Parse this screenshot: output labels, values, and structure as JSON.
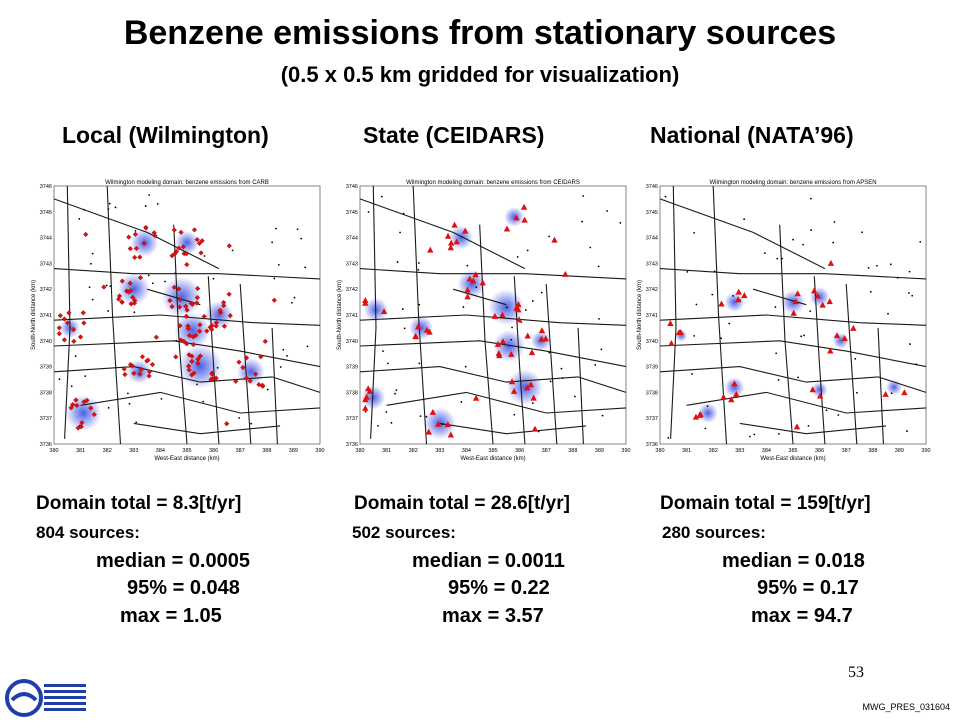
{
  "slide": {
    "title": "Benzene emissions from stationary sources",
    "subtitle": "(0.5 x 0.5 km gridded for visualization)",
    "page_number": "53",
    "reference": "MWG_PRES_031604",
    "logo_icon": "agency-logo-icon"
  },
  "columns": [
    {
      "heading": "Local (Wilmington)",
      "map_title": "Wilmington modeling domain: benzene emissions from CARB",
      "marker": "diamond",
      "domain_total": "Domain total = 8.3[t/yr]",
      "sources": "804 sources:",
      "median": "median =  0.0005",
      "p95": "95% =  0.048",
      "max": "max  =  1.05"
    },
    {
      "heading": "State (CEIDARS)",
      "map_title": "Wilmington modeling domain: benzene emissions from CEIDARS",
      "marker": "triangle",
      "domain_total": "Domain total = 28.6[t/yr]",
      "sources": "502 sources:",
      "median": "median = 0.0011",
      "p95": "95% = 0.22",
      "max": "max  = 3.57"
    },
    {
      "heading": "National (NATA’96)",
      "map_title": "Wilmington modeling domain: benzene emissions from APSEN",
      "marker": "triangle",
      "domain_total": "Domain total = 159[t/yr]",
      "sources": "280 sources:",
      "median": "median = 0.018",
      "p95": "95% = 0.17",
      "max": "max  = 94.7"
    }
  ],
  "map_axes": {
    "xlabel": "West-East distance (km)",
    "ylabel": "South-North distance (km)",
    "x_ticks": [
      "380",
      "381",
      "382",
      "383",
      "384",
      "385",
      "386",
      "387",
      "388",
      "389",
      "390"
    ],
    "y_ticks": [
      "3736",
      "3737",
      "3738",
      "3739",
      "3740",
      "3741",
      "3742",
      "3743",
      "3744",
      "3745",
      "3746"
    ]
  },
  "colors": {
    "emission_blue": "#3a4fe0",
    "marker_red": "#e01010",
    "road": "#1a1a1a"
  }
}
